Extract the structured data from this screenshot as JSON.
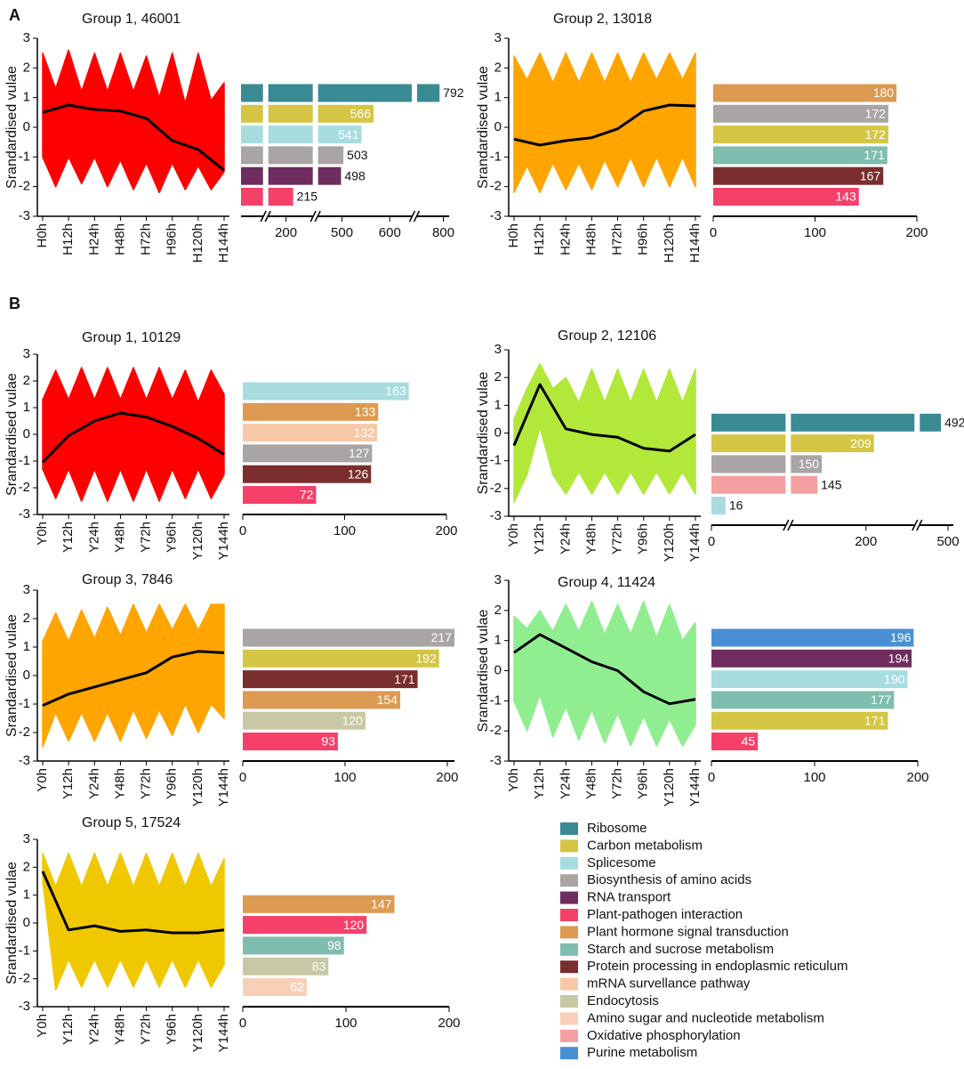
{
  "panel_labels": [
    "A",
    "B"
  ],
  "chart_data": [
    {
      "type": "line",
      "title": "Group 1, 46001",
      "ylabel": "Srandardised vulae",
      "categories": [
        "H0h",
        "H12h",
        "H24h",
        "H48h",
        "H72h",
        "H96h",
        "H120h",
        "H144h"
      ],
      "ylim": [
        -3,
        3
      ],
      "yticks": [
        -3,
        -2,
        -1,
        0,
        1,
        2,
        3
      ],
      "band": {
        "color": "#ff0000",
        "upper": [
          2.5,
          1.3,
          2.6,
          1.2,
          2.5,
          1.2,
          2.5,
          1.2,
          2.4,
          1.0,
          2.5,
          0.8,
          2.5,
          0.9,
          1.5
        ],
        "lower": [
          -1.0,
          -2.0,
          -1.0,
          -1.9,
          -1.0,
          -2.0,
          -1.1,
          -2.1,
          -1.2,
          -2.2,
          -1.2,
          -2.1,
          -1.3,
          -2.1,
          -1.5
        ]
      },
      "series": [
        {
          "color": "#000000",
          "values": [
            0.5,
            0.75,
            0.6,
            0.55,
            0.3,
            -0.45,
            -0.75,
            -1.45
          ]
        }
      ],
      "bar_chart": {
        "type": "bar",
        "orientation": "horizontal",
        "values": [
          792,
          566,
          541,
          503,
          498,
          215
        ],
        "colors": [
          "#3a8a94",
          "#d4c544",
          "#a8dde0",
          "#aaa5a5",
          "#6e2d5e",
          "#f5406a"
        ],
        "xlim": [
          [
            0,
            46
          ],
          [
            163,
            256
          ],
          [
            450,
            646
          ],
          [
            745,
            812
          ]
        ],
        "xticks": [
          200,
          500,
          600,
          800
        ]
      }
    },
    {
      "type": "line",
      "title": "Group 2, 13018",
      "ylabel": "Srandardised vulae",
      "categories": [
        "H0h",
        "H12h",
        "H24h",
        "H48h",
        "H72h",
        "H96h",
        "H120h",
        "H144h"
      ],
      "ylim": [
        -3,
        3
      ],
      "yticks": [
        -3,
        -2,
        -1,
        0,
        1,
        2,
        3
      ],
      "band": {
        "color": "#ffa500",
        "upper": [
          2.4,
          1.6,
          2.5,
          1.5,
          2.5,
          1.5,
          2.5,
          1.5,
          2.5,
          1.5,
          2.5,
          1.6,
          2.5,
          1.6,
          2.5
        ],
        "lower": [
          -2.2,
          -1.3,
          -2.2,
          -1.2,
          -2.1,
          -1.2,
          -2.1,
          -1.1,
          -2.0,
          -1.0,
          -2.0,
          -1.0,
          -2.0,
          -1.0,
          -2.0
        ]
      },
      "series": [
        {
          "color": "#000000",
          "values": [
            -0.4,
            -0.6,
            -0.45,
            -0.35,
            -0.05,
            0.55,
            0.75,
            0.72
          ]
        }
      ],
      "bar_chart": {
        "type": "bar",
        "orientation": "horizontal",
        "values": [
          180,
          172,
          172,
          171,
          167,
          143
        ],
        "colors": [
          "#dd9a52",
          "#aaa5a5",
          "#d4c544",
          "#7fbdaf",
          "#7a2e2e",
          "#f5406a"
        ],
        "xlim": [
          [
            0,
            200
          ]
        ],
        "xticks": [
          0,
          100,
          200
        ]
      }
    },
    {
      "type": "line",
      "title": "Group 1, 10129",
      "ylabel": "Srandardised vulae",
      "categories": [
        "Y0h",
        "Y12h",
        "Y24h",
        "Y48h",
        "Y72h",
        "Y96h",
        "Y120h",
        "Y144h"
      ],
      "ylim": [
        -3,
        3
      ],
      "yticks": [
        -3,
        -2,
        -1,
        0,
        1,
        2,
        3
      ],
      "band": {
        "color": "#ff0000",
        "upper": [
          1.3,
          2.4,
          1.3,
          2.5,
          1.3,
          2.5,
          1.3,
          2.5,
          1.3,
          2.5,
          1.3,
          2.4,
          1.2,
          2.4,
          1.5
        ],
        "lower": [
          -1.3,
          -2.4,
          -1.3,
          -2.5,
          -1.3,
          -2.5,
          -1.3,
          -2.5,
          -1.3,
          -2.5,
          -1.3,
          -2.4,
          -1.3,
          -2.4,
          -1.5
        ]
      },
      "series": [
        {
          "color": "#000000",
          "values": [
            -1.05,
            -0.05,
            0.5,
            0.8,
            0.65,
            0.3,
            -0.15,
            -0.75
          ]
        }
      ],
      "bar_chart": {
        "type": "bar",
        "orientation": "horizontal",
        "values": [
          163,
          133,
          132,
          127,
          126,
          72
        ],
        "colors": [
          "#a8dde0",
          "#dd9a52",
          "#f7c9a8",
          "#aaa5a5",
          "#7a2e2e",
          "#f5406a"
        ],
        "xlim": [
          [
            0,
            200
          ]
        ],
        "xticks": [
          0,
          100,
          200
        ]
      }
    },
    {
      "type": "line",
      "title": "Group 2, 12106",
      "ylabel": "Srandardised vulae",
      "categories": [
        "Y0h",
        "Y12h",
        "Y24h",
        "Y48h",
        "Y72h",
        "Y96h",
        "Y120h",
        "Y144h"
      ],
      "ylim": [
        -3,
        3
      ],
      "yticks": [
        -3,
        -2,
        -1,
        0,
        1,
        2,
        3
      ],
      "band": {
        "color": "#b2e83a",
        "upper": [
          0.5,
          1.6,
          2.5,
          1.6,
          2.0,
          1.1,
          2.3,
          1.1,
          2.3,
          1.1,
          2.3,
          1.1,
          2.3,
          1.1,
          2.3
        ],
        "lower": [
          -2.5,
          -1.5,
          0.2,
          -1.5,
          -2.2,
          -1.4,
          -2.2,
          -1.4,
          -2.2,
          -1.4,
          -2.2,
          -1.4,
          -2.2,
          -1.4,
          -2.2
        ]
      },
      "series": [
        {
          "color": "#000000",
          "values": [
            -0.45,
            1.75,
            0.15,
            -0.05,
            -0.15,
            -0.55,
            -0.65,
            -0.05
          ]
        }
      ],
      "bar_chart": {
        "type": "bar",
        "orientation": "horizontal",
        "values": [
          492,
          209,
          150,
          145,
          16
        ],
        "colors": [
          "#3a8a94",
          "#d4c544",
          "#aaa5a5",
          "#f4a0a0",
          "#a8dde0"
        ],
        "xlim": [
          [
            0,
            84
          ],
          [
            115,
            255
          ],
          [
            468,
            506
          ]
        ],
        "xticks": [
          0,
          200,
          500
        ]
      }
    },
    {
      "type": "line",
      "title": "Group 3, 7846",
      "ylabel": "Srandardised vulae",
      "categories": [
        "Y0h",
        "Y12h",
        "Y24h",
        "Y48h",
        "Y72h",
        "Y96h",
        "Y120h",
        "Y144h"
      ],
      "ylim": [
        -3,
        3
      ],
      "yticks": [
        -3,
        -2,
        -1,
        0,
        1,
        2,
        3
      ],
      "band": {
        "color": "#ffa500",
        "upper": [
          1.2,
          2.2,
          1.2,
          2.3,
          1.3,
          2.4,
          1.4,
          2.5,
          1.5,
          2.5,
          1.6,
          2.5,
          1.6,
          2.5,
          2.5
        ],
        "lower": [
          -2.5,
          -1.3,
          -2.3,
          -1.3,
          -2.3,
          -1.3,
          -2.3,
          -1.2,
          -2.2,
          -1.2,
          -2.1,
          -1.0,
          -2.0,
          -1.0,
          -1.5
        ]
      },
      "series": [
        {
          "color": "#000000",
          "values": [
            -1.05,
            -0.65,
            -0.4,
            -0.15,
            0.1,
            0.65,
            0.85,
            0.8
          ]
        }
      ],
      "bar_chart": {
        "type": "bar",
        "orientation": "horizontal",
        "values": [
          217,
          192,
          171,
          154,
          120,
          93
        ],
        "colors": [
          "#aaa5a5",
          "#d4c544",
          "#7a2e2e",
          "#dd9a52",
          "#c8c8a4",
          "#f5406a"
        ],
        "xlim": [
          [
            0,
            207
          ]
        ],
        "xticks": [
          0,
          100,
          200
        ]
      }
    },
    {
      "type": "line",
      "title": "Group 4, 11424",
      "ylabel": "Srandardised vulae",
      "categories": [
        "Y0h",
        "Y12h",
        "Y24h",
        "Y48h",
        "Y72h",
        "Y96h",
        "Y120h",
        "Y144h"
      ],
      "ylim": [
        -3,
        3
      ],
      "yticks": [
        -3,
        -2,
        -1,
        0,
        1,
        2,
        3
      ],
      "band": {
        "color": "#90ee90",
        "upper": [
          1.8,
          1.4,
          2.0,
          1.3,
          2.2,
          1.3,
          2.3,
          1.2,
          2.2,
          1.2,
          2.3,
          1.1,
          2.2,
          1.0,
          1.6
        ],
        "lower": [
          -1.0,
          -2.0,
          -0.8,
          -2.2,
          -1.2,
          -2.3,
          -1.3,
          -2.4,
          -1.4,
          -2.5,
          -1.5,
          -2.5,
          -1.6,
          -2.5,
          -1.8
        ]
      },
      "series": [
        {
          "color": "#000000",
          "values": [
            0.6,
            1.2,
            0.75,
            0.3,
            0,
            -0.7,
            -1.1,
            -0.95
          ]
        }
      ],
      "bar_chart": {
        "type": "bar",
        "orientation": "horizontal",
        "values": [
          196,
          194,
          190,
          177,
          171,
          45
        ],
        "colors": [
          "#4a8fd4",
          "#6e2d5e",
          "#a8dde0",
          "#7fbdaf",
          "#d4c544",
          "#f5406a"
        ],
        "xlim": [
          [
            0,
            200
          ]
        ],
        "xticks": [
          0,
          100,
          200
        ]
      }
    },
    {
      "type": "line",
      "title": "Group 5, 17524",
      "ylabel": "Srandardised vulae",
      "categories": [
        "Y0h",
        "Y12h",
        "Y24h",
        "Y48h",
        "Y72h",
        "Y96h",
        "Y120h",
        "Y144h"
      ],
      "ylim": [
        -3,
        3
      ],
      "yticks": [
        -3,
        -2,
        -1,
        0,
        1,
        2,
        3
      ],
      "band": {
        "color": "#f0c800",
        "upper": [
          2.5,
          1.3,
          2.5,
          1.3,
          2.5,
          1.3,
          2.5,
          1.3,
          2.5,
          1.3,
          2.5,
          1.3,
          2.5,
          1.3,
          2.3
        ],
        "lower": [
          1.5,
          -2.4,
          -1.3,
          -2.3,
          -1.3,
          -2.3,
          -1.3,
          -2.3,
          -1.3,
          -2.3,
          -1.3,
          -2.3,
          -1.3,
          -2.3,
          -1.5
        ]
      },
      "series": [
        {
          "color": "#000000",
          "values": [
            1.85,
            -0.25,
            -0.1,
            -0.3,
            -0.25,
            -0.35,
            -0.35,
            -0.25
          ]
        }
      ],
      "bar_chart": {
        "type": "bar",
        "orientation": "horizontal",
        "values": [
          147,
          120,
          98,
          83,
          62
        ],
        "colors": [
          "#dd9a52",
          "#f5406a",
          "#7fbdaf",
          "#c8c8a4",
          "#f8d0b8"
        ],
        "xlim": [
          [
            0,
            200
          ]
        ],
        "xticks": [
          0,
          100,
          200
        ]
      }
    }
  ],
  "legend": [
    {
      "name": "Ribosome",
      "color": "#3a8a94"
    },
    {
      "name": "Carbon metabolism",
      "color": "#d4c544"
    },
    {
      "name": "Splicesome",
      "color": "#a8dde0"
    },
    {
      "name": "Biosynthesis of amino acids",
      "color": "#aaa5a5"
    },
    {
      "name": "RNA transport",
      "color": "#6e2d5e"
    },
    {
      "name": "Plant-pathogen interaction",
      "color": "#f5406a"
    },
    {
      "name": "Plant hormone signal transduction",
      "color": "#dd9a52"
    },
    {
      "name": "Starch and sucrose metabolism",
      "color": "#7fbdaf"
    },
    {
      "name": "Protein processing in endoplasmic reticulum",
      "color": "#7a2e2e"
    },
    {
      "name": "mRNA survellance pathway",
      "color": "#f7c9a8"
    },
    {
      "name": "Endocytosis",
      "color": "#c8c8a4"
    },
    {
      "name": "Amino sugar and nucleotide metabolism",
      "color": "#f8d0b8"
    },
    {
      "name": "Oxidative phosphorylation",
      "color": "#f4a0a0"
    },
    {
      "name": "Purine metabolism",
      "color": "#4a8fd4"
    }
  ]
}
